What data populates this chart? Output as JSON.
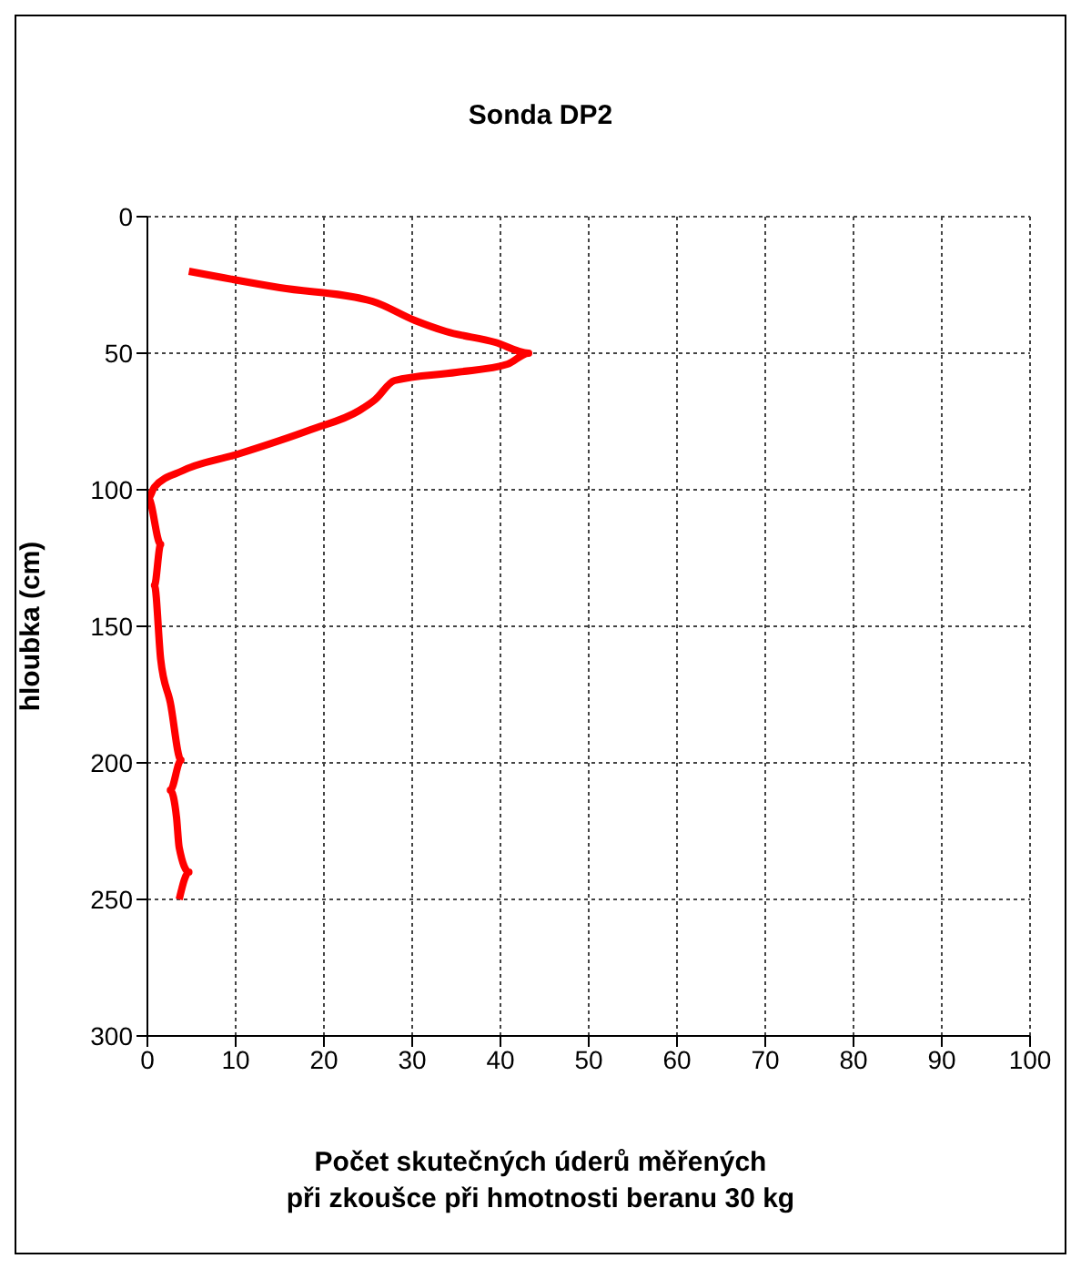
{
  "chart_data": {
    "type": "line",
    "title": "Sonda DP2",
    "xlabel": "Počet skutečných úderů měřených\npři zkoušce při hmotnosti beranu 30 kg",
    "ylabel": "hloubka (cm)",
    "series": [
      {
        "color": "#ff0000",
        "x": [
          4.7,
          15,
          25.5,
          30.3,
          33.8,
          39.4,
          43.2,
          40.8,
          35,
          28,
          25.8,
          24,
          18.5,
          10.2,
          4,
          0.8,
          0.1,
          1.5,
          0.8,
          1.5,
          2.6,
          3.8,
          2.6,
          3.3,
          3.6,
          4.7,
          3.6
        ],
        "values": [
          20,
          26,
          31,
          38,
          42,
          46,
          50,
          54,
          57,
          60,
          67,
          71,
          78,
          87,
          93,
          99,
          103,
          120,
          135,
          162,
          178,
          199,
          210,
          220,
          231,
          240,
          250
        ]
      }
    ],
    "xlim": [
      0,
      100
    ],
    "xticks": [
      0,
      10,
      20,
      30,
      40,
      50,
      60,
      70,
      80,
      90,
      100
    ],
    "ylim": [
      300,
      0
    ],
    "yticks": [
      0,
      50,
      100,
      150,
      200,
      250,
      300
    ],
    "grid": true,
    "legend": false,
    "marker": "none",
    "line_style": "solid"
  }
}
